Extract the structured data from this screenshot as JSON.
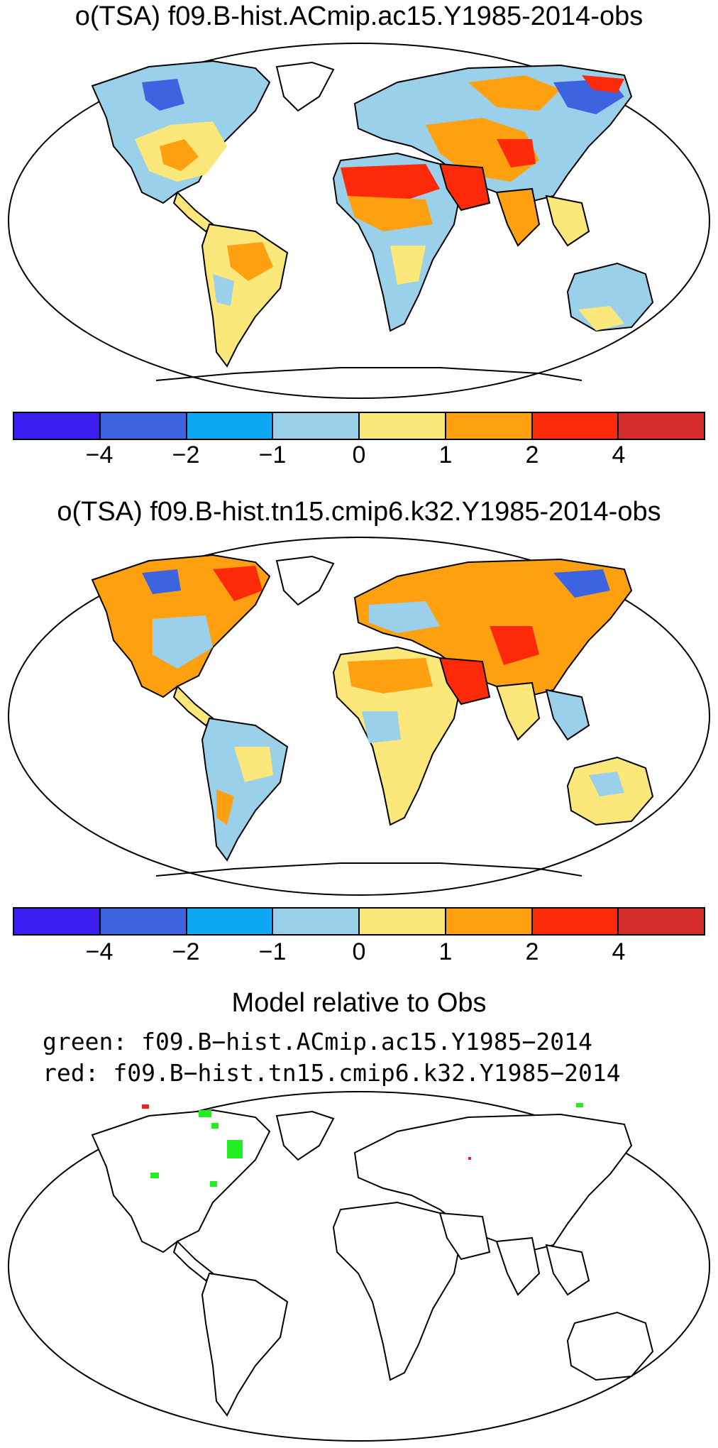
{
  "titles": {
    "panel1": "o(TSA) f09.B-hist.ACmip.ac15.Y1985-2014-obs",
    "panel2": "o(TSA) f09.B-hist.tn15.cmip6.k32.Y1985-2014-obs",
    "panel3": "Model relative to Obs",
    "panel3_green": "green: f09.B−hist.ACmip.ac15.Y1985−2014",
    "panel3_red": "red: f09.B−hist.tn15.cmip6.k32.Y1985−2014"
  },
  "colorbar": {
    "colors": [
      "#3a1ff0",
      "#3d64e0",
      "#0fa8f5",
      "#9bd0ea",
      "#fbe77a",
      "#fea00f",
      "#fd2a0a",
      "#d42b2b"
    ],
    "tick_labels": [
      "−4",
      "−2",
      "−1",
      "0",
      "1",
      "2",
      "4"
    ]
  },
  "markers": {
    "green_color": "#22ee22",
    "red_color": "#ee2222"
  }
}
